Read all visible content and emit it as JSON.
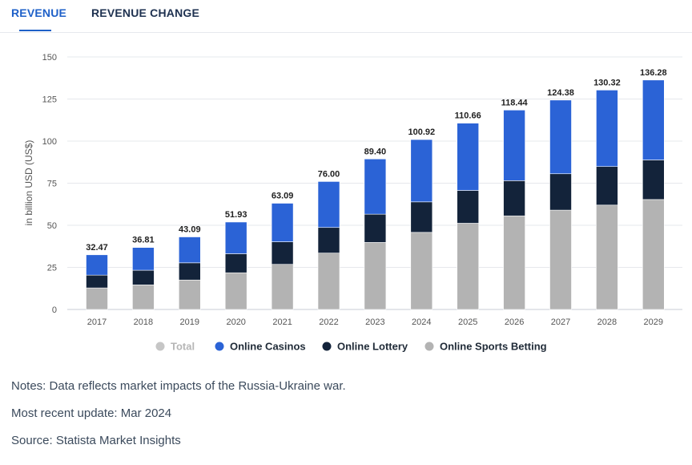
{
  "tabs": [
    {
      "label": "REVENUE",
      "active": true
    },
    {
      "label": "REVENUE CHANGE",
      "active": false
    }
  ],
  "chart_data": {
    "type": "bar",
    "stacked": true,
    "ylabel": "in billion USD (US$)",
    "ylim": [
      0,
      150
    ],
    "yticks": [
      0,
      25,
      50,
      75,
      100,
      125,
      150
    ],
    "grid": true,
    "legend_position": "bottom",
    "categories": [
      "2017",
      "2018",
      "2019",
      "2020",
      "2021",
      "2022",
      "2023",
      "2024",
      "2025",
      "2026",
      "2027",
      "2028",
      "2029"
    ],
    "totals": [
      "32.47",
      "36.81",
      "43.09",
      "51.93",
      "63.09",
      "76.00",
      "89.40",
      "100.92",
      "110.66",
      "118.44",
      "124.38",
      "130.32",
      "136.28"
    ],
    "legend": [
      {
        "name": "Total",
        "color": "#c6c6c6",
        "inactive": true
      },
      {
        "name": "Online Casinos",
        "color": "#2b63d6"
      },
      {
        "name": "Online Lottery",
        "color": "#13233a"
      },
      {
        "name": "Online Sports Betting",
        "color": "#b3b3b3"
      }
    ],
    "series": [
      {
        "name": "Online Sports Betting",
        "color": "#b3b3b3",
        "values": [
          12.8,
          14.6,
          17.5,
          21.8,
          26.8,
          33.5,
          39.8,
          45.8,
          51.2,
          55.6,
          59.0,
          62.0,
          65.3
        ]
      },
      {
        "name": "Online Lottery",
        "color": "#13233a",
        "values": [
          7.6,
          8.7,
          10.2,
          11.3,
          13.4,
          15.2,
          16.8,
          18.1,
          19.5,
          20.9,
          21.6,
          22.9,
          23.5
        ]
      },
      {
        "name": "Online Casinos",
        "color": "#2b63d6",
        "values": [
          12.07,
          13.51,
          15.39,
          18.83,
          22.89,
          27.3,
          32.8,
          37.02,
          39.96,
          41.94,
          43.78,
          45.42,
          47.48
        ]
      }
    ]
  },
  "notes": {
    "note": "Notes: Data reflects market impacts of the Russia-Ukraine war.",
    "update": "Most recent update: Mar 2024",
    "source": "Source: Statista Market Insights"
  }
}
